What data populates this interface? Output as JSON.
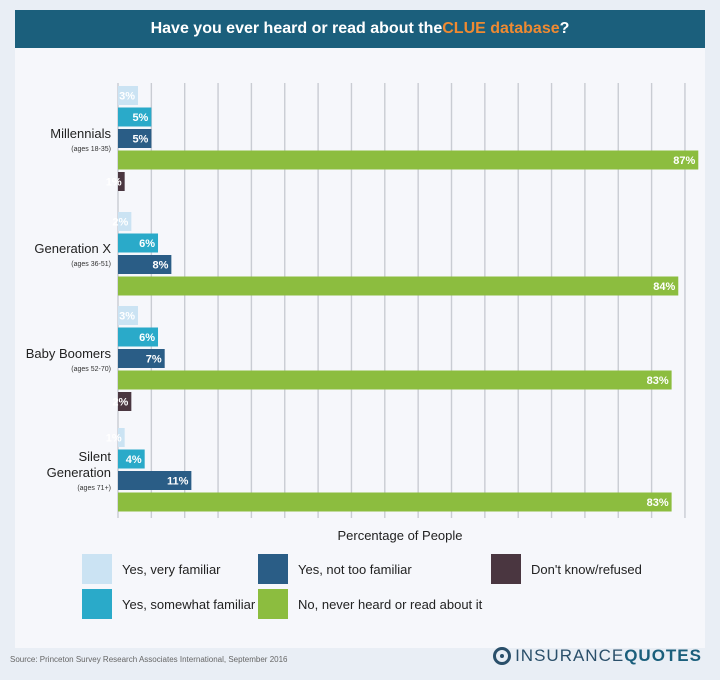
{
  "header": {
    "title_pre": "Have you ever heard or read about the ",
    "title_highlight": "CLUE database",
    "title_post": "?"
  },
  "colors": {
    "very_familiar": "#cbe3f3",
    "somewhat_familiar": "#2aaac9",
    "not_too_familiar": "#2a5d86",
    "never_heard": "#8cbd3f",
    "dont_know": "#4a3640",
    "highlight": "#ef8a32"
  },
  "chart_data": {
    "type": "bar",
    "orientation": "horizontal",
    "xlabel": "Percentage of People",
    "xlim": [
      0,
      95
    ],
    "grid": true,
    "groups": [
      {
        "name": "Millennials",
        "name_lines": [
          "Millennials"
        ],
        "sub": "(ages 18-35)",
        "bars": [
          {
            "series": "very_familiar",
            "value": 3,
            "label": "3%"
          },
          {
            "series": "somewhat_familiar",
            "value": 5,
            "label": "5%"
          },
          {
            "series": "not_too_familiar",
            "value": 5,
            "label": "5%"
          },
          {
            "series": "never_heard",
            "value": 87,
            "label": "87%"
          },
          {
            "series": "dont_know",
            "value": 1,
            "label": "1%"
          }
        ]
      },
      {
        "name": "Generation X",
        "name_lines": [
          "Generation X"
        ],
        "sub": "(ages 36-51)",
        "bars": [
          {
            "series": "very_familiar",
            "value": 2,
            "label": "2%"
          },
          {
            "series": "somewhat_familiar",
            "value": 6,
            "label": "6%"
          },
          {
            "series": "not_too_familiar",
            "value": 8,
            "label": "8%"
          },
          {
            "series": "never_heard",
            "value": 84,
            "label": "84%"
          }
        ]
      },
      {
        "name": "Baby Boomers",
        "name_lines": [
          "Baby Boomers"
        ],
        "sub": "(ages 52-70)",
        "bars": [
          {
            "series": "very_familiar",
            "value": 3,
            "label": "3%"
          },
          {
            "series": "somewhat_familiar",
            "value": 6,
            "label": "6%"
          },
          {
            "series": "not_too_familiar",
            "value": 7,
            "label": "7%"
          },
          {
            "series": "never_heard",
            "value": 83,
            "label": "83%"
          },
          {
            "series": "dont_know",
            "value": 2,
            "label": "2%"
          }
        ]
      },
      {
        "name": "Silent Generation",
        "name_lines": [
          "Silent",
          "Generation"
        ],
        "sub": "(ages 71+)",
        "bars": [
          {
            "series": "very_familiar",
            "value": 1,
            "label": "1%"
          },
          {
            "series": "somewhat_familiar",
            "value": 4,
            "label": "4%"
          },
          {
            "series": "not_too_familiar",
            "value": 11,
            "label": "11%"
          },
          {
            "series": "never_heard",
            "value": 83,
            "label": "83%"
          }
        ]
      }
    ],
    "legend": [
      {
        "series": "very_familiar",
        "label": "Yes, very familiar"
      },
      {
        "series": "not_too_familiar",
        "label": "Yes, not too familiar"
      },
      {
        "series": "dont_know",
        "label": "Don't know/refused"
      },
      {
        "series": "somewhat_familiar",
        "label": "Yes, somewhat familiar"
      },
      {
        "series": "never_heard",
        "label": "No, never heard or read about it"
      }
    ]
  },
  "footer": {
    "source": "Source: Princeton Survey Research Associates International, September 2016",
    "logo_light": "INSURANCE",
    "logo_bold": "QUOTES"
  }
}
